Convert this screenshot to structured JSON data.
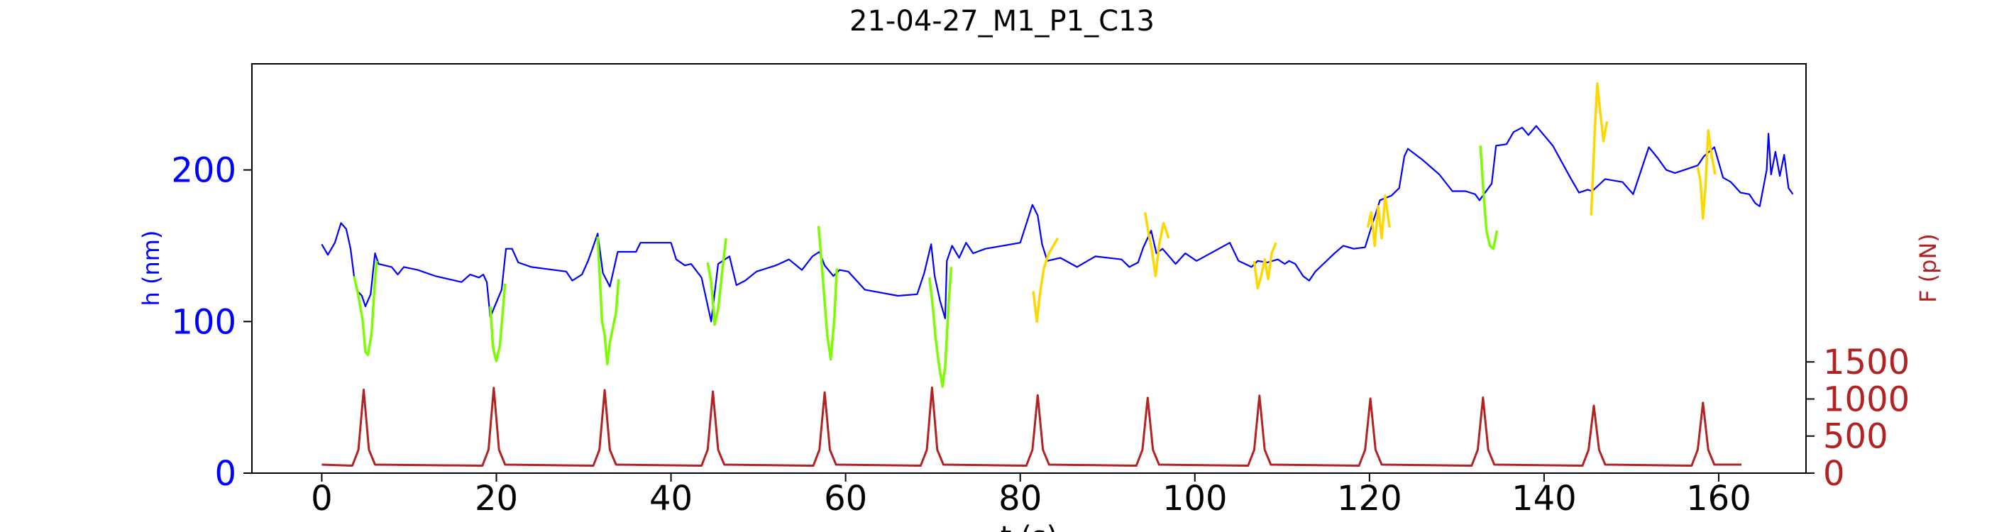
{
  "chart_data": {
    "type": "line",
    "title": "21-04-27_M1_P1_C13",
    "xlabel": "t (s)",
    "ylabel_left": "h (nm)",
    "ylabel_right": "F (pN)",
    "xlim": [
      -8,
      170
    ],
    "ylim_left": [
      0,
      270
    ],
    "ylim_right": [
      0,
      5520
    ],
    "x_ticks": [
      0,
      20,
      40,
      60,
      80,
      100,
      120,
      140,
      160
    ],
    "y_ticks_left": [
      0,
      100,
      200
    ],
    "y_ticks_right": [
      0,
      500,
      1000,
      1500
    ],
    "grid": false,
    "colors": {
      "h_base": "#0000ff",
      "h_green": "#7cfc00",
      "h_gold": "#ffd700",
      "force": "#b22222",
      "left_axis": "#0000ff",
      "right_axis": "#b22222"
    },
    "series": [
      {
        "axis": "left",
        "color": "#0000ff",
        "points": [
          [
            0,
            151
          ],
          [
            0.7,
            144
          ],
          [
            1.5,
            152
          ],
          [
            2.2,
            165
          ],
          [
            2.8,
            161
          ],
          [
            3.3,
            148
          ],
          [
            3.7,
            130
          ],
          [
            4.1,
            120
          ],
          [
            4.6,
            117
          ],
          [
            5.0,
            110
          ],
          [
            5.6,
            118
          ],
          [
            6.1,
            145
          ],
          [
            6.5,
            138
          ],
          [
            8,
            136
          ],
          [
            8.7,
            131
          ],
          [
            9.4,
            136
          ],
          [
            11,
            134
          ],
          [
            13,
            130
          ],
          [
            16,
            126
          ],
          [
            17,
            131
          ],
          [
            18,
            129
          ],
          [
            18.5,
            131
          ],
          [
            18.9,
            126
          ],
          [
            19.3,
            103
          ],
          [
            20.6,
            121
          ],
          [
            21.1,
            148
          ],
          [
            21.8,
            148
          ],
          [
            22.5,
            139
          ],
          [
            24,
            136
          ],
          [
            28,
            133
          ],
          [
            28.7,
            127
          ],
          [
            29.8,
            131
          ],
          [
            30.5,
            140
          ],
          [
            31,
            148
          ],
          [
            31.6,
            158
          ],
          [
            32.2,
            132
          ],
          [
            33.0,
            123
          ],
          [
            33.9,
            146
          ],
          [
            36,
            146
          ],
          [
            36.5,
            152
          ],
          [
            40,
            152
          ],
          [
            40.6,
            141
          ],
          [
            41.6,
            137
          ],
          [
            42.3,
            138
          ],
          [
            43.5,
            129
          ],
          [
            44.6,
            100
          ],
          [
            45.4,
            138
          ],
          [
            46.7,
            143
          ],
          [
            47.5,
            124
          ],
          [
            48.5,
            127
          ],
          [
            49.8,
            133
          ],
          [
            52,
            137
          ],
          [
            53.5,
            141
          ],
          [
            55,
            134
          ],
          [
            56.2,
            143
          ],
          [
            57.0,
            146
          ],
          [
            57.6,
            137
          ],
          [
            58.6,
            130
          ],
          [
            59.3,
            134
          ],
          [
            60.3,
            133
          ],
          [
            62.2,
            121
          ],
          [
            66,
            117
          ],
          [
            68.2,
            118
          ],
          [
            69.0,
            132
          ],
          [
            69.8,
            151
          ],
          [
            70.2,
            130
          ],
          [
            70.8,
            114
          ],
          [
            71.4,
            102
          ],
          [
            71.6,
            140
          ],
          [
            72.2,
            150
          ],
          [
            73.0,
            142
          ],
          [
            73.8,
            152
          ],
          [
            74.6,
            145
          ],
          [
            76,
            148
          ],
          [
            80,
            152
          ],
          [
            81.4,
            177
          ],
          [
            82.0,
            170
          ],
          [
            82.5,
            151
          ],
          [
            83.1,
            140
          ],
          [
            84.6,
            142
          ],
          [
            86.5,
            136
          ],
          [
            88.6,
            143
          ],
          [
            91.6,
            141
          ],
          [
            92.5,
            136
          ],
          [
            93.5,
            139
          ],
          [
            94.1,
            149
          ],
          [
            95.0,
            160
          ],
          [
            95.6,
            145
          ],
          [
            96.3,
            148
          ],
          [
            97.8,
            138
          ],
          [
            98.9,
            145
          ],
          [
            100.2,
            140
          ],
          [
            104,
            152
          ],
          [
            105,
            140
          ],
          [
            106.5,
            136
          ],
          [
            107.2,
            140
          ],
          [
            108.3,
            139
          ],
          [
            109.5,
            141
          ],
          [
            110.3,
            138
          ],
          [
            110.8,
            140
          ],
          [
            111.5,
            138
          ],
          [
            112.4,
            130
          ],
          [
            113.1,
            127
          ],
          [
            113.8,
            133
          ],
          [
            116,
            145
          ],
          [
            117,
            150
          ],
          [
            118.2,
            148
          ],
          [
            119.5,
            149
          ],
          [
            120.2,
            162
          ],
          [
            121.2,
            180
          ],
          [
            122.5,
            183
          ],
          [
            123.4,
            188
          ],
          [
            124.0,
            209
          ],
          [
            124.4,
            214
          ],
          [
            126,
            207
          ],
          [
            128,
            197
          ],
          [
            129.5,
            186
          ],
          [
            131,
            186
          ],
          [
            132.1,
            184
          ],
          [
            132.6,
            180
          ],
          [
            134,
            191
          ],
          [
            134.5,
            216
          ],
          [
            135.7,
            217
          ],
          [
            136.5,
            225
          ],
          [
            137.5,
            228
          ],
          [
            138.2,
            223
          ],
          [
            139.1,
            229
          ],
          [
            141,
            216
          ],
          [
            143,
            195
          ],
          [
            144.0,
            185
          ],
          [
            145,
            187
          ],
          [
            145.5,
            186
          ],
          [
            147,
            194
          ],
          [
            148,
            193
          ],
          [
            149,
            192
          ],
          [
            150.2,
            184
          ],
          [
            152,
            215
          ],
          [
            153,
            208
          ],
          [
            154,
            200
          ],
          [
            155,
            198
          ],
          [
            157.6,
            203
          ],
          [
            158.3,
            209
          ],
          [
            159.5,
            215
          ],
          [
            160.5,
            195
          ],
          [
            161.4,
            192
          ],
          [
            162.5,
            185
          ],
          [
            163.5,
            184
          ],
          [
            164.2,
            178
          ],
          [
            164.7,
            176
          ],
          [
            165.5,
            200
          ],
          [
            165.7,
            224
          ],
          [
            166,
            197
          ],
          [
            166.5,
            212
          ],
          [
            167,
            196
          ],
          [
            167.5,
            210
          ],
          [
            168,
            188
          ],
          [
            168.5,
            184
          ]
        ]
      },
      {
        "axis": "left",
        "color": "#7cfc00",
        "segments": [
          [
            [
              3.7,
              130
            ],
            [
              4.2,
              117
            ],
            [
              4.7,
              100
            ],
            [
              5.0,
              80
            ],
            [
              5.3,
              78
            ],
            [
              5.7,
              92
            ],
            [
              6.1,
              128
            ],
            [
              6.3,
              140
            ]
          ],
          [
            [
              19.3,
              110
            ],
            [
              19.6,
              84
            ],
            [
              19.8,
              78
            ],
            [
              20.0,
              74
            ],
            [
              20.4,
              84
            ],
            [
              21.0,
              125
            ]
          ],
          [
            [
              31.6,
              156
            ],
            [
              32.1,
              100
            ],
            [
              32.4,
              91
            ],
            [
              32.7,
              72
            ],
            [
              33.0,
              86
            ],
            [
              33.7,
              106
            ],
            [
              34.0,
              128
            ]
          ],
          [
            [
              44.2,
              139
            ],
            [
              44.6,
              126
            ],
            [
              45.0,
              98
            ],
            [
              45.4,
              108
            ],
            [
              45.9,
              135
            ],
            [
              46.3,
              155
            ]
          ],
          [
            [
              56.9,
              163
            ],
            [
              57.2,
              142
            ],
            [
              57.6,
              113
            ],
            [
              57.9,
              91
            ],
            [
              58.3,
              75
            ],
            [
              58.7,
              101
            ],
            [
              59.0,
              135
            ]
          ],
          [
            [
              69.6,
              129
            ],
            [
              70.0,
              109
            ],
            [
              70.3,
              89
            ],
            [
              70.7,
              71
            ],
            [
              71.1,
              57
            ],
            [
              71.4,
              70
            ],
            [
              71.8,
              112
            ],
            [
              72.1,
              136
            ]
          ],
          [
            [
              132.7,
              216
            ],
            [
              133.0,
              190
            ],
            [
              133.4,
              160
            ],
            [
              133.8,
              150
            ],
            [
              134.2,
              148
            ],
            [
              134.6,
              160
            ]
          ]
        ]
      },
      {
        "axis": "left",
        "color": "#ffd700",
        "segments": [
          [
            [
              81.5,
              120
            ],
            [
              81.9,
              100
            ],
            [
              82.3,
              120
            ],
            [
              82.7,
              135
            ],
            [
              83.2,
              144
            ],
            [
              83.8,
              150
            ],
            [
              84.3,
              155
            ]
          ],
          [
            [
              94.3,
              172
            ],
            [
              94.7,
              158
            ],
            [
              95.1,
              146
            ],
            [
              95.5,
              130
            ],
            [
              95.9,
              150
            ],
            [
              96.4,
              165
            ],
            [
              97.0,
              155
            ]
          ],
          [
            [
              106.8,
              140
            ],
            [
              107.2,
              122
            ],
            [
              107.6,
              130
            ],
            [
              108.0,
              141
            ],
            [
              108.4,
              128
            ],
            [
              108.8,
              145
            ],
            [
              109.3,
              152
            ]
          ],
          [
            [
              119.8,
              162
            ],
            [
              120.2,
              172
            ],
            [
              120.6,
              150
            ],
            [
              121.0,
              176
            ],
            [
              121.4,
              155
            ],
            [
              121.8,
              183
            ],
            [
              122.3,
              162
            ]
          ],
          [
            [
              145.4,
              170
            ],
            [
              145.8,
              226
            ],
            [
              146.1,
              257
            ],
            [
              146.4,
              240
            ],
            [
              146.8,
              219
            ],
            [
              147.2,
              232
            ]
          ],
          [
            [
              157.6,
              202
            ],
            [
              157.9,
              193
            ],
            [
              158.2,
              168
            ],
            [
              158.5,
              190
            ],
            [
              158.8,
              226
            ],
            [
              159.2,
              209
            ],
            [
              159.6,
              197
            ]
          ]
        ]
      },
      {
        "axis": "right",
        "color": "#b22222",
        "peaks": [
          4.8,
          19.7,
          32.4,
          44.8,
          57.6,
          69.9,
          82.0,
          94.6,
          107.4,
          120.1,
          133.0,
          145.7,
          158.2
        ],
        "peak_values": [
          1125,
          1150,
          1120,
          1100,
          1090,
          1155,
          1050,
          1015,
          1045,
          1005,
          1020,
          910,
          950
        ],
        "baseline": 115,
        "x_start": 0,
        "x_end": 162.6
      }
    ]
  }
}
